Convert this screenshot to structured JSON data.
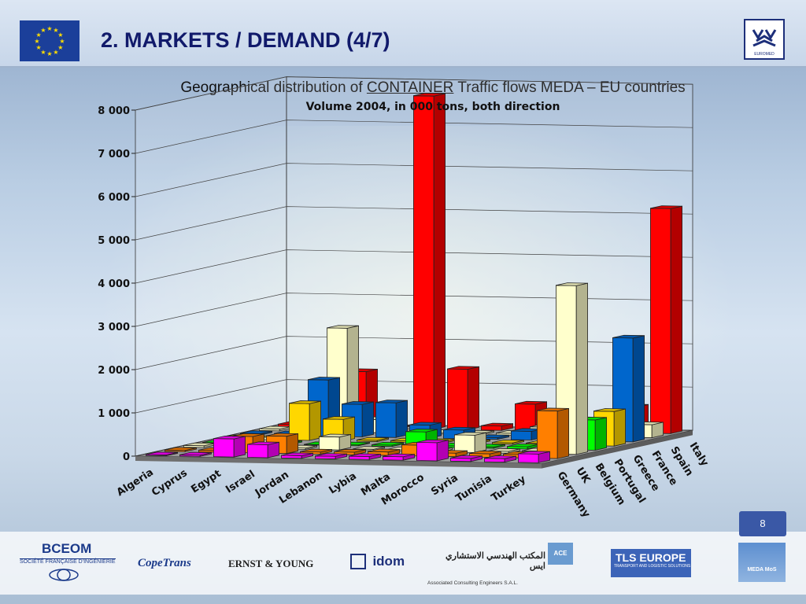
{
  "header": {
    "title": "2. MARKETS / DEMAND (4/7)",
    "logo_text": "EUROMED"
  },
  "subtitle": {
    "prefix": "Geographical distribution of ",
    "emphasis": "CONTAINER",
    "suffix": " Traffic flows MEDA – EU countries"
  },
  "chart_data": {
    "type": "bar",
    "title": "Volume 2004, in 000 tons, both direction",
    "zlim": [
      0,
      8000
    ],
    "z_ticks": [
      "0",
      "1 000",
      "2 000",
      "3 000",
      "4 000",
      "5 000",
      "6 000",
      "7 000",
      "8 000"
    ],
    "x_categories": [
      "Algeria",
      "Cyprus",
      "Egypt",
      "Israel",
      "Jordan",
      "Lebanon",
      "Lybia",
      "Malta",
      "Morocco",
      "Syria",
      "Tunisia",
      "Turkey"
    ],
    "series": [
      {
        "name": "Germany",
        "color": "#ff00ff",
        "values": [
          20,
          30,
          420,
          300,
          60,
          60,
          70,
          80,
          420,
          70,
          80,
          200
        ]
      },
      {
        "name": "UK",
        "color": "#ff7f00",
        "values": [
          30,
          40,
          380,
          400,
          50,
          60,
          80,
          250,
          80,
          80,
          80,
          1100
        ]
      },
      {
        "name": "Belgium",
        "color": "#ffffcc",
        "values": [
          40,
          50,
          200,
          30,
          300,
          30,
          30,
          40,
          400,
          40,
          60,
          3900
        ]
      },
      {
        "name": "Portugal",
        "color": "#00ff00",
        "values": [
          10,
          20,
          30,
          10,
          20,
          30,
          350,
          40,
          30,
          50,
          20,
          700
        ]
      },
      {
        "name": "Greece",
        "color": "#ffd700",
        "values": [
          30,
          30,
          850,
          500,
          30,
          30,
          30,
          30,
          30,
          30,
          250,
          800
        ]
      },
      {
        "name": "France",
        "color": "#0066cc",
        "values": [
          30,
          40,
          1300,
          750,
          800,
          300,
          200,
          40,
          200,
          40,
          30,
          2400
        ]
      },
      {
        "name": "Spain",
        "color": "#ffffcc",
        "values": [
          40,
          50,
          2400,
          300,
          30,
          30,
          30,
          40,
          200,
          30,
          30,
          300
        ]
      },
      {
        "name": "Italy",
        "color": "#ff0000",
        "values": [
          50,
          60,
          1300,
          20,
          7700,
          1400,
          100,
          620,
          360,
          30,
          600,
          5200
        ]
      }
    ]
  },
  "footer": {
    "sponsors": [
      {
        "name": "BCEOM",
        "tagline": "SOCIÉTÉ FRANÇAISE D'INGÉNIERIE"
      },
      {
        "name": "CopeTrans"
      },
      {
        "name": "ERNST & YOUNG"
      },
      {
        "name": "idom"
      },
      {
        "name": "Associated Consulting Engineers S.A.L.",
        "arabic": "المكتب الهندسي الاستشاري ايس"
      },
      {
        "name": "ACE"
      },
      {
        "name": "TLS EUROPE",
        "tagline": "TRANSPORT AND LOGISTIC SOLUTIONS"
      },
      {
        "name": "MEDA MoS"
      }
    ],
    "slide_number": "8"
  }
}
